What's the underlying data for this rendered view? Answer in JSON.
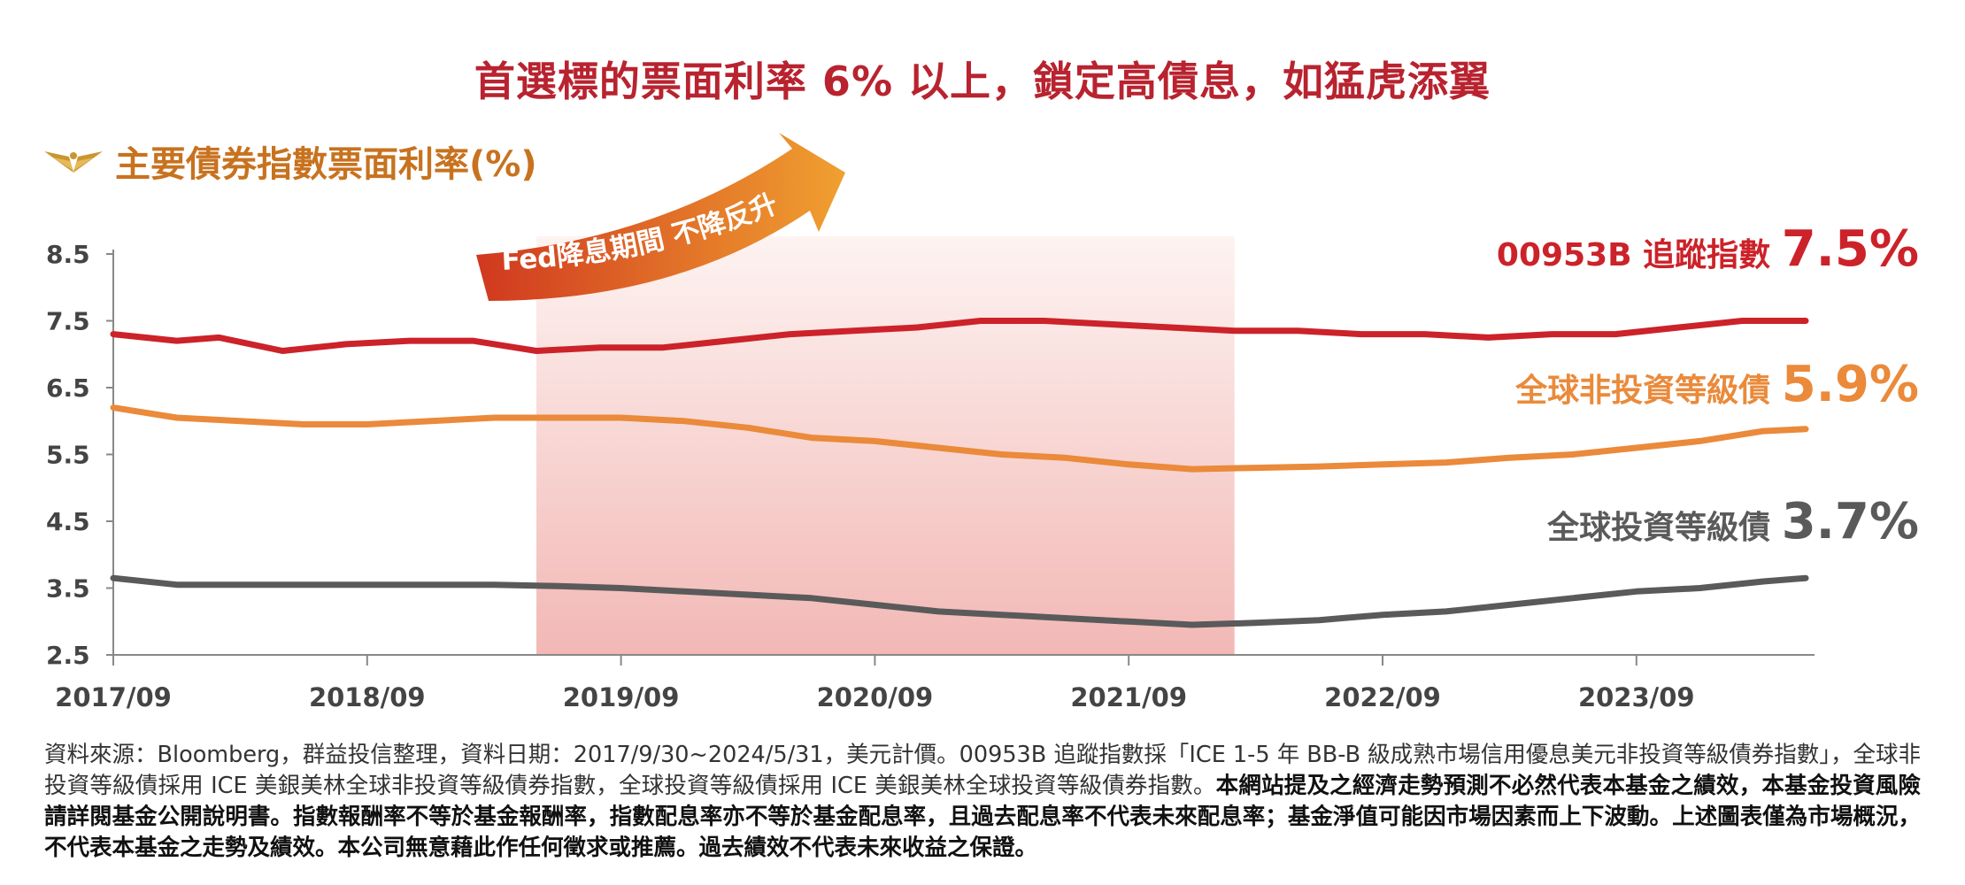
{
  "headline": "首選標的票面利率 6% 以上，鎖定高債息，如猛虎添翼",
  "subtitle": "主要債券指數票面利率(%)",
  "icon": "winged-logo-icon",
  "colors": {
    "headline": "#b8232f",
    "subtitle": "#c8721f",
    "arrow_start": "#d0381f",
    "arrow_end": "#f0a030",
    "shade_top": "#fdf3f1",
    "shade_bottom": "#f2b8b5"
  },
  "chart_data": {
    "type": "line",
    "yticks": [
      "8.5",
      "7.5",
      "6.5",
      "5.5",
      "4.5",
      "3.5",
      "2.5"
    ],
    "ylim": [
      2.5,
      8.5
    ],
    "xlim": [
      "2017/09",
      "2024/05"
    ],
    "xticks": [
      "2017/09",
      "2018/09",
      "2019/09",
      "2020/09",
      "2021/09",
      "2022/09",
      "2023/09"
    ],
    "shaded_period": {
      "start": "2019/05",
      "end": "2022/02",
      "label": "Fed降息期間 不降反升"
    },
    "series": [
      {
        "name": "00953B 追蹤指數",
        "color": "#cc2229",
        "end_label": "7.5%",
        "points": [
          [
            "2017/09",
            7.3
          ],
          [
            "2017/12",
            7.2
          ],
          [
            "2018/02",
            7.25
          ],
          [
            "2018/05",
            7.05
          ],
          [
            "2018/08",
            7.15
          ],
          [
            "2018/11",
            7.2
          ],
          [
            "2019/02",
            7.2
          ],
          [
            "2019/04",
            7.1
          ],
          [
            "2019/05",
            7.05
          ],
          [
            "2019/08",
            7.1
          ],
          [
            "2019/11",
            7.1
          ],
          [
            "2020/02",
            7.2
          ],
          [
            "2020/05",
            7.3
          ],
          [
            "2020/08",
            7.35
          ],
          [
            "2020/11",
            7.4
          ],
          [
            "2021/02",
            7.5
          ],
          [
            "2021/05",
            7.5
          ],
          [
            "2021/08",
            7.45
          ],
          [
            "2021/11",
            7.4
          ],
          [
            "2022/02",
            7.35
          ],
          [
            "2022/05",
            7.35
          ],
          [
            "2022/08",
            7.3
          ],
          [
            "2022/11",
            7.3
          ],
          [
            "2023/02",
            7.25
          ],
          [
            "2023/05",
            7.3
          ],
          [
            "2023/08",
            7.3
          ],
          [
            "2023/11",
            7.4
          ],
          [
            "2024/02",
            7.5
          ],
          [
            "2024/05",
            7.5
          ]
        ]
      },
      {
        "name": "全球非投資等級債",
        "color": "#ea8a3a",
        "end_label": "5.9%",
        "points": [
          [
            "2017/09",
            6.2
          ],
          [
            "2017/12",
            6.05
          ],
          [
            "2018/03",
            6.0
          ],
          [
            "2018/06",
            5.95
          ],
          [
            "2018/09",
            5.95
          ],
          [
            "2018/12",
            6.0
          ],
          [
            "2019/03",
            6.05
          ],
          [
            "2019/06",
            6.05
          ],
          [
            "2019/09",
            6.05
          ],
          [
            "2019/12",
            6.0
          ],
          [
            "2020/03",
            5.9
          ],
          [
            "2020/06",
            5.75
          ],
          [
            "2020/09",
            5.7
          ],
          [
            "2020/12",
            5.6
          ],
          [
            "2021/03",
            5.5
          ],
          [
            "2021/06",
            5.45
          ],
          [
            "2021/09",
            5.35
          ],
          [
            "2021/12",
            5.28
          ],
          [
            "2022/03",
            5.3
          ],
          [
            "2022/06",
            5.32
          ],
          [
            "2022/09",
            5.35
          ],
          [
            "2022/12",
            5.38
          ],
          [
            "2023/03",
            5.45
          ],
          [
            "2023/06",
            5.5
          ],
          [
            "2023/09",
            5.6
          ],
          [
            "2023/12",
            5.7
          ],
          [
            "2024/03",
            5.85
          ],
          [
            "2024/05",
            5.88
          ]
        ]
      },
      {
        "name": "全球投資等級債",
        "color": "#5a5a5a",
        "end_label": "3.7%",
        "points": [
          [
            "2017/09",
            3.65
          ],
          [
            "2017/12",
            3.55
          ],
          [
            "2018/03",
            3.55
          ],
          [
            "2018/09",
            3.55
          ],
          [
            "2019/03",
            3.55
          ],
          [
            "2019/06",
            3.53
          ],
          [
            "2019/09",
            3.5
          ],
          [
            "2019/12",
            3.45
          ],
          [
            "2020/03",
            3.4
          ],
          [
            "2020/06",
            3.35
          ],
          [
            "2020/09",
            3.25
          ],
          [
            "2020/12",
            3.15
          ],
          [
            "2021/03",
            3.1
          ],
          [
            "2021/06",
            3.05
          ],
          [
            "2021/09",
            3.0
          ],
          [
            "2021/12",
            2.95
          ],
          [
            "2022/03",
            2.98
          ],
          [
            "2022/06",
            3.02
          ],
          [
            "2022/09",
            3.1
          ],
          [
            "2022/12",
            3.15
          ],
          [
            "2023/03",
            3.25
          ],
          [
            "2023/06",
            3.35
          ],
          [
            "2023/09",
            3.45
          ],
          [
            "2023/12",
            3.5
          ],
          [
            "2024/03",
            3.6
          ],
          [
            "2024/05",
            3.65
          ]
        ]
      }
    ]
  },
  "footnote": {
    "plain": "資料來源：Bloomberg，群益投信整理，資料日期：2017/9/30~2024/5/31，美元計價。00953B 追蹤指數採「ICE 1-5 年 BB-B 級成熟市場信用優息美元非投資等級債券指數」，全球非投資等級債採用 ICE 美銀美林全球非投資等級債券指數，全球投資等級債採用 ICE 美銀美林全球投資等級債券指數。",
    "bold": "本網站提及之經濟走勢預測不必然代表本基金之績效，本基金投資風險請詳閱基金公開說明書。指數報酬率不等於基金報酬率，指數配息率亦不等於基金配息率，且過去配息率不代表未來配息率；基金淨值可能因市場因素而上下波動。上述圖表僅為市場概況，不代表本基金之走勢及績效。本公司無意藉此作任何徵求或推薦。過去績效不代表未來收益之保證。"
  }
}
